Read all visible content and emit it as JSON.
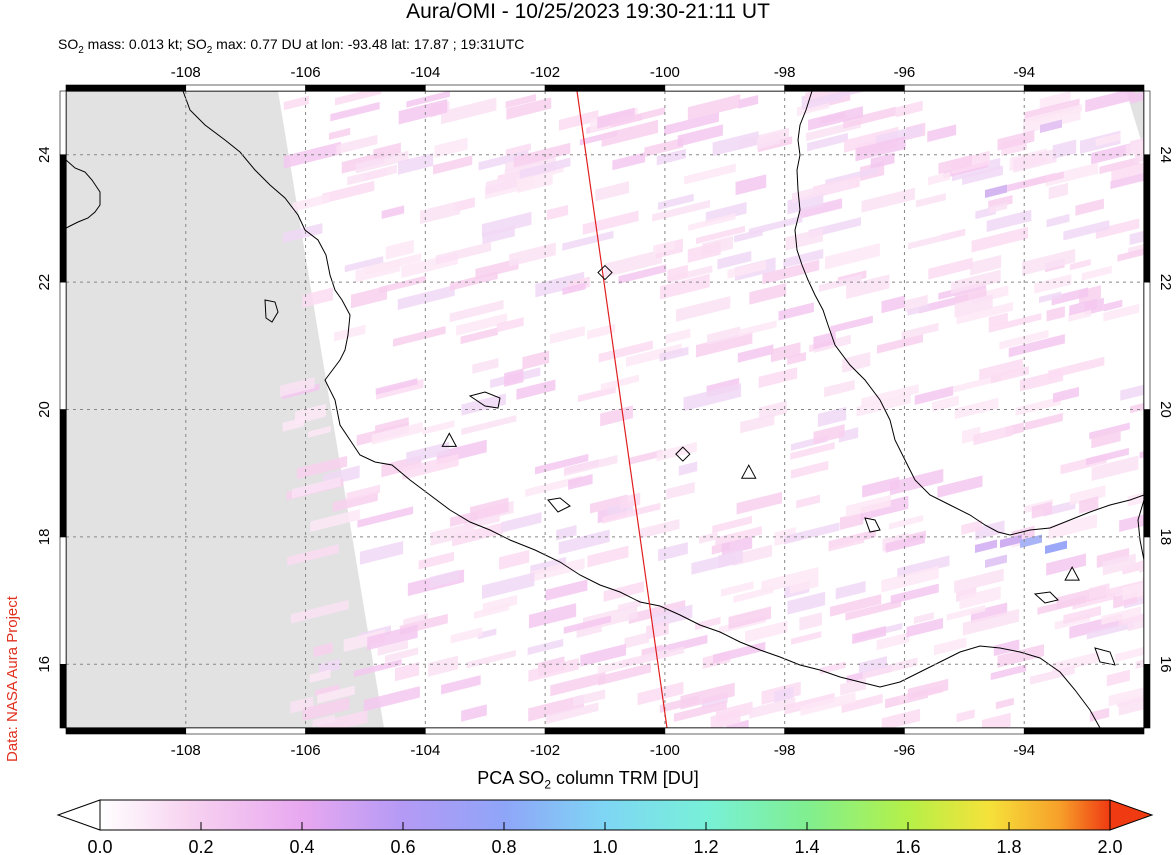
{
  "title": "Aura/OMI - 10/25/2023 19:30-21:11 UT",
  "subtitle": {
    "so2_mass_label": "SO",
    "so2_mass_text": " mass: 0.013 kt; SO",
    "so2_max_text": " max: 0.77 DU at lon: -93.48 lat: 17.87 ; 19:31UTC",
    "sub": "2"
  },
  "credit": "Data: NASA Aura Project",
  "colorbar": {
    "title_prefix": "PCA SO",
    "title_sub": "2",
    "title_suffix": " column TRM [DU]",
    "ticks": [
      "0.0",
      "0.2",
      "0.4",
      "0.6",
      "0.8",
      "1.0",
      "1.2",
      "1.4",
      "1.6",
      "1.8",
      "2.0"
    ],
    "range": [
      0.0,
      2.0
    ],
    "colors": [
      "#ffffff",
      "#f7d2f0",
      "#e8a8f0",
      "#b49af5",
      "#8fa5f8",
      "#7ed6f4",
      "#78f0d8",
      "#80ef90",
      "#b5f048",
      "#f5e23a",
      "#f7a02a",
      "#ef3a12"
    ]
  },
  "map": {
    "lon_range": [
      -110,
      -92
    ],
    "lat_range": [
      15,
      25
    ],
    "lon_ticks": [
      "-108",
      "-106",
      "-104",
      "-102",
      "-100",
      "-98",
      "-96",
      "-94"
    ],
    "lat_ticks": [
      "16",
      "18",
      "20",
      "22",
      "24"
    ],
    "no_data_color": "#e2e2e2",
    "swath_edge_color": "#e02020",
    "volcano_markers": [
      {
        "type": "triangle",
        "lon": -103.6,
        "lat": 19.5
      },
      {
        "type": "triangle",
        "lon": -98.6,
        "lat": 19.0
      },
      {
        "type": "triangle",
        "lon": -93.2,
        "lat": 17.4
      },
      {
        "type": "diamond",
        "lon": -101.0,
        "lat": 22.15
      },
      {
        "type": "diamond",
        "lon": -99.7,
        "lat": 19.3
      }
    ]
  }
}
